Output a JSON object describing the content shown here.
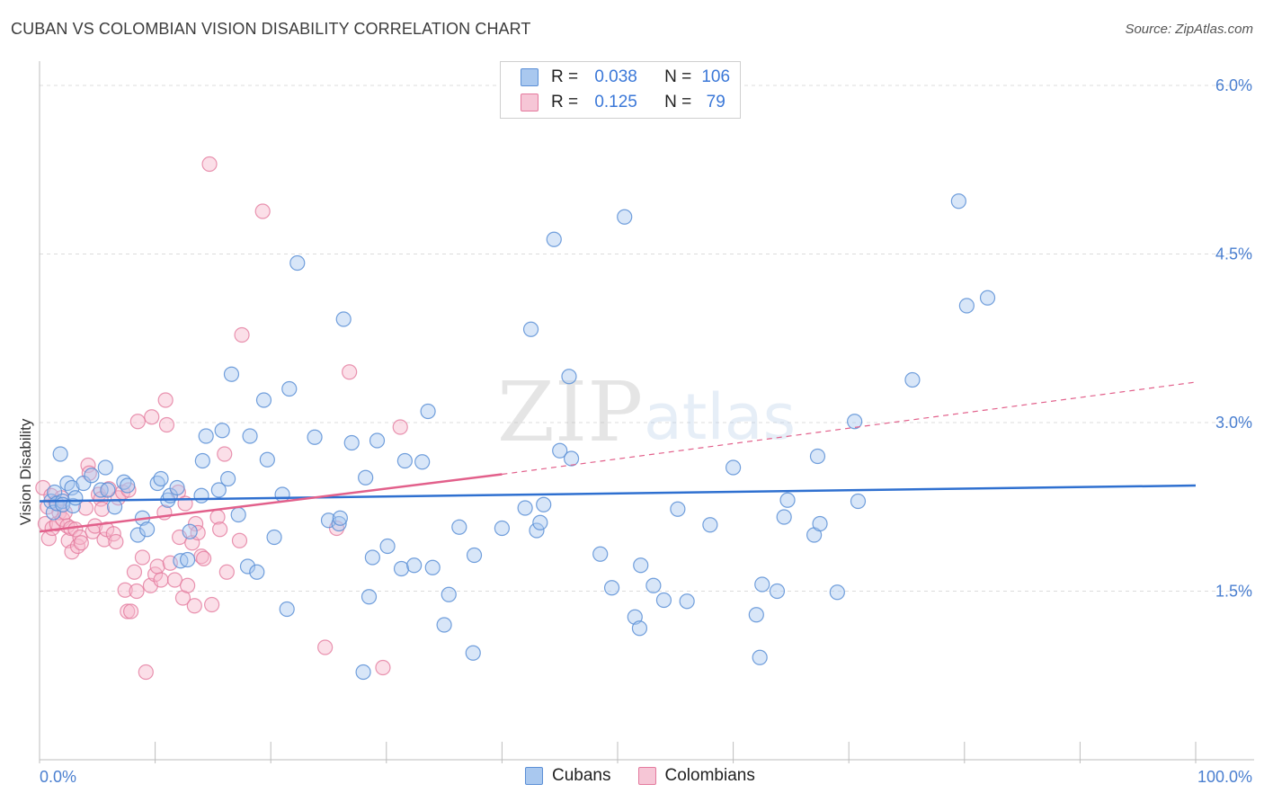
{
  "title": "CUBAN VS COLOMBIAN VISION DISABILITY CORRELATION CHART",
  "source": "Source: ZipAtlas.com",
  "watermark": {
    "zip": "ZIP",
    "atlas": "atlas"
  },
  "legend": {
    "rows": [
      {
        "r_label": "R =",
        "r_value": "0.038",
        "n_label": "N =",
        "n_value": "106"
      },
      {
        "r_label": "R =",
        "r_value": "0.125",
        "n_label": "N =",
        "n_value": "79"
      }
    ]
  },
  "bottom_legend": [
    "Cubans",
    "Colombians"
  ],
  "colors": {
    "cubans_fill": "#a9c8ef",
    "cubans_stroke": "#5b8fd6",
    "cubans_line": "#2f70d0",
    "colombians_fill": "#f6b9cc",
    "colombians_stroke": "#e47a9e",
    "colombians_line": "#e2608b",
    "tick_text": "#4a7fd0",
    "grid": "#dcdcdc"
  },
  "chart_data": {
    "type": "scatter",
    "title": "CUBAN VS COLOMBIAN VISION DISABILITY CORRELATION CHART",
    "xlabel": "",
    "ylabel": "Vision Disability",
    "xlim": [
      0,
      100
    ],
    "ylim": [
      0,
      6.2
    ],
    "x_tick_labels": [
      "0.0%",
      "100.0%"
    ],
    "y_ticks": [
      1.5,
      3.0,
      4.5,
      6.0
    ],
    "y_tick_labels": [
      "1.5%",
      "3.0%",
      "4.5%",
      "6.0%"
    ],
    "grid": true,
    "legend_position": "top-center",
    "series": [
      {
        "name": "Cubans",
        "R": 0.038,
        "N": 106,
        "trend": {
          "x": [
            0,
            100
          ],
          "y": [
            2.3,
            2.44
          ]
        },
        "points": [
          [
            1.0,
            2.3
          ],
          [
            1.2,
            2.2
          ],
          [
            1.3,
            2.38
          ],
          [
            1.5,
            2.28
          ],
          [
            1.8,
            2.72
          ],
          [
            2.0,
            2.3
          ],
          [
            2.0,
            2.27
          ],
          [
            2.4,
            2.46
          ],
          [
            2.8,
            2.42
          ],
          [
            2.9,
            2.26
          ],
          [
            3.1,
            2.33
          ],
          [
            3.8,
            2.46
          ],
          [
            4.5,
            2.53
          ],
          [
            5.3,
            2.4
          ],
          [
            5.7,
            2.6
          ],
          [
            5.9,
            2.4
          ],
          [
            6.5,
            2.25
          ],
          [
            7.3,
            2.47
          ],
          [
            7.6,
            2.44
          ],
          [
            8.5,
            2.0
          ],
          [
            8.9,
            2.15
          ],
          [
            9.3,
            2.05
          ],
          [
            10.2,
            2.46
          ],
          [
            10.5,
            2.5
          ],
          [
            11.1,
            2.31
          ],
          [
            11.3,
            2.35
          ],
          [
            11.9,
            2.42
          ],
          [
            12.2,
            1.77
          ],
          [
            12.8,
            1.78
          ],
          [
            13.0,
            2.03
          ],
          [
            14.0,
            2.35
          ],
          [
            14.1,
            2.66
          ],
          [
            14.4,
            2.88
          ],
          [
            15.5,
            2.4
          ],
          [
            15.8,
            2.93
          ],
          [
            16.3,
            2.5
          ],
          [
            16.6,
            3.43
          ],
          [
            17.2,
            2.18
          ],
          [
            18.0,
            1.72
          ],
          [
            18.2,
            2.88
          ],
          [
            18.8,
            1.67
          ],
          [
            19.4,
            3.2
          ],
          [
            19.7,
            2.67
          ],
          [
            20.3,
            1.98
          ],
          [
            21.0,
            2.36
          ],
          [
            21.4,
            1.34
          ],
          [
            21.6,
            3.3
          ],
          [
            22.3,
            4.42
          ],
          [
            23.8,
            2.87
          ],
          [
            25.0,
            2.13
          ],
          [
            25.9,
            2.1
          ],
          [
            26.0,
            2.15
          ],
          [
            26.3,
            3.92
          ],
          [
            27.0,
            2.82
          ],
          [
            28.2,
            2.51
          ],
          [
            28.5,
            1.45
          ],
          [
            28.8,
            1.8
          ],
          [
            28.0,
            0.78
          ],
          [
            29.2,
            2.84
          ],
          [
            30.1,
            1.9
          ],
          [
            31.3,
            1.7
          ],
          [
            31.6,
            2.66
          ],
          [
            32.4,
            1.73
          ],
          [
            33.1,
            2.65
          ],
          [
            33.6,
            3.1
          ],
          [
            34.0,
            1.71
          ],
          [
            35.0,
            1.2
          ],
          [
            35.4,
            1.47
          ],
          [
            36.3,
            2.07
          ],
          [
            37.5,
            0.95
          ],
          [
            37.6,
            1.82
          ],
          [
            40.0,
            2.06
          ],
          [
            42.0,
            2.24
          ],
          [
            42.5,
            3.83
          ],
          [
            43.0,
            2.04
          ],
          [
            43.3,
            2.11
          ],
          [
            43.6,
            2.27
          ],
          [
            44.5,
            4.63
          ],
          [
            45.0,
            2.75
          ],
          [
            45.8,
            3.41
          ],
          [
            46.0,
            2.68
          ],
          [
            48.5,
            1.83
          ],
          [
            49.5,
            1.53
          ],
          [
            50.6,
            4.83
          ],
          [
            51.5,
            1.27
          ],
          [
            51.9,
            1.17
          ],
          [
            52.0,
            1.73
          ],
          [
            53.1,
            1.55
          ],
          [
            54.0,
            1.42
          ],
          [
            55.2,
            2.23
          ],
          [
            56.0,
            1.41
          ],
          [
            58.0,
            2.09
          ],
          [
            60.0,
            2.6
          ],
          [
            62.0,
            1.29
          ],
          [
            62.3,
            0.91
          ],
          [
            62.5,
            1.56
          ],
          [
            63.8,
            1.5
          ],
          [
            64.4,
            2.16
          ],
          [
            64.7,
            2.31
          ],
          [
            67.0,
            2.0
          ],
          [
            67.3,
            2.7
          ],
          [
            67.5,
            2.1
          ],
          [
            69.0,
            1.49
          ],
          [
            70.5,
            3.01
          ],
          [
            70.8,
            2.3
          ],
          [
            75.5,
            3.38
          ],
          [
            79.5,
            4.97
          ],
          [
            80.2,
            4.04
          ],
          [
            82.0,
            4.11
          ]
        ]
      },
      {
        "name": "Colombians",
        "R": 0.125,
        "N": 79,
        "trend": {
          "x": [
            0,
            40,
            100
          ],
          "y": [
            2.03,
            2.54,
            3.36
          ]
        },
        "points": [
          [
            0.3,
            2.42
          ],
          [
            0.5,
            2.1
          ],
          [
            0.7,
            2.25
          ],
          [
            0.8,
            1.97
          ],
          [
            1.0,
            2.35
          ],
          [
            1.1,
            2.06
          ],
          [
            1.4,
            2.29
          ],
          [
            1.5,
            2.1
          ],
          [
            1.7,
            2.2
          ],
          [
            1.9,
            2.33
          ],
          [
            2.0,
            2.14
          ],
          [
            2.2,
            2.2
          ],
          [
            2.4,
            2.08
          ],
          [
            2.5,
            1.95
          ],
          [
            2.7,
            2.06
          ],
          [
            2.8,
            1.85
          ],
          [
            3.1,
            2.05
          ],
          [
            3.3,
            1.9
          ],
          [
            3.5,
            1.98
          ],
          [
            3.6,
            1.93
          ],
          [
            4.0,
            2.24
          ],
          [
            4.2,
            2.62
          ],
          [
            4.3,
            2.55
          ],
          [
            4.6,
            2.03
          ],
          [
            4.8,
            2.08
          ],
          [
            5.1,
            2.36
          ],
          [
            5.3,
            2.32
          ],
          [
            5.4,
            2.23
          ],
          [
            5.6,
            1.96
          ],
          [
            5.8,
            2.05
          ],
          [
            6.0,
            2.41
          ],
          [
            6.4,
            2.01
          ],
          [
            6.6,
            1.94
          ],
          [
            6.8,
            2.33
          ],
          [
            7.2,
            2.38
          ],
          [
            7.4,
            1.51
          ],
          [
            7.6,
            1.32
          ],
          [
            7.7,
            2.4
          ],
          [
            7.9,
            1.32
          ],
          [
            8.2,
            1.67
          ],
          [
            8.4,
            1.5
          ],
          [
            8.5,
            3.01
          ],
          [
            8.9,
            1.8
          ],
          [
            9.2,
            0.78
          ],
          [
            9.6,
            1.55
          ],
          [
            9.7,
            3.05
          ],
          [
            10.0,
            1.65
          ],
          [
            10.2,
            1.72
          ],
          [
            10.5,
            1.6
          ],
          [
            10.8,
            2.2
          ],
          [
            10.9,
            3.2
          ],
          [
            11.0,
            2.98
          ],
          [
            11.3,
            1.75
          ],
          [
            11.7,
            1.6
          ],
          [
            12.0,
            2.38
          ],
          [
            12.1,
            1.98
          ],
          [
            12.4,
            1.44
          ],
          [
            12.6,
            2.28
          ],
          [
            12.8,
            1.55
          ],
          [
            13.2,
            1.93
          ],
          [
            13.4,
            1.37
          ],
          [
            13.5,
            2.1
          ],
          [
            13.7,
            2.02
          ],
          [
            14.0,
            1.81
          ],
          [
            14.2,
            1.79
          ],
          [
            14.7,
            5.3
          ],
          [
            14.9,
            1.38
          ],
          [
            15.4,
            2.16
          ],
          [
            15.6,
            2.05
          ],
          [
            16.0,
            2.72
          ],
          [
            16.2,
            1.67
          ],
          [
            17.3,
            1.95
          ],
          [
            17.5,
            3.78
          ],
          [
            19.3,
            4.88
          ],
          [
            24.7,
            1.0
          ],
          [
            25.7,
            2.06
          ],
          [
            26.8,
            3.45
          ],
          [
            29.7,
            0.82
          ],
          [
            31.2,
            2.96
          ]
        ]
      }
    ]
  }
}
